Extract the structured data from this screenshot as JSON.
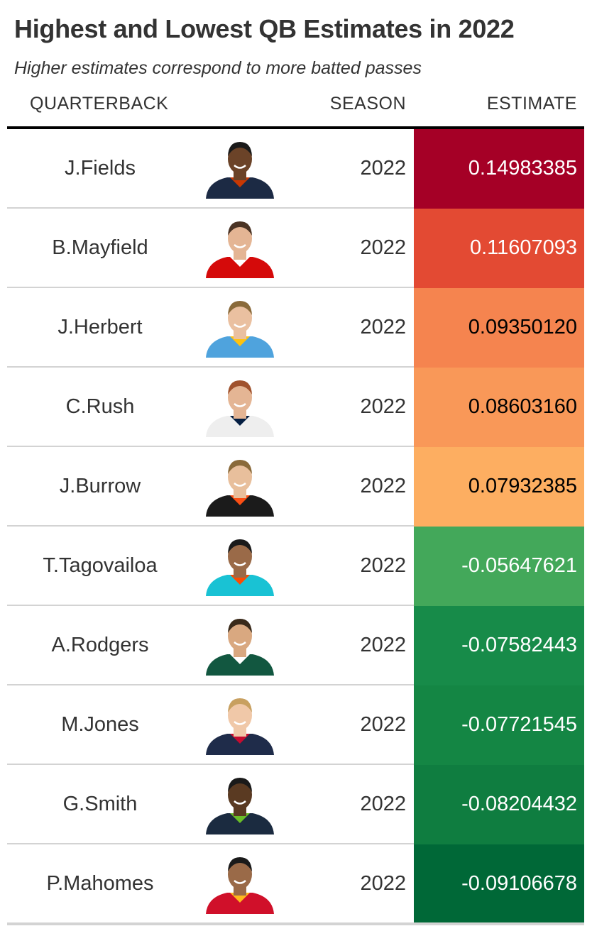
{
  "title": "Highest and Lowest QB Estimates in 2022",
  "subtitle": "Higher estimates correspond to more batted passes",
  "columns": {
    "quarterback": "QUARTERBACK",
    "season": "SEASON",
    "estimate": "ESTIMATE"
  },
  "chart_data": {
    "type": "table",
    "columns": [
      "QUARTERBACK",
      "SEASON",
      "ESTIMATE"
    ],
    "rows": [
      {
        "name": "J.Fields",
        "season": "2022",
        "estimate": "0.14983385",
        "bg": "#a50026",
        "fg": "#ffffff",
        "jersey": "#1c2a44",
        "skin": "#6b4328",
        "hair": "#1a1a1a",
        "accent": "#c83803"
      },
      {
        "name": "B.Mayfield",
        "season": "2022",
        "estimate": "0.11607093",
        "bg": "#e34a33",
        "fg": "#ffffff",
        "jersey": "#d50a0a",
        "skin": "#e4b594",
        "hair": "#4a3324",
        "accent": "#ffffff"
      },
      {
        "name": "J.Herbert",
        "season": "2022",
        "estimate": "0.09350120",
        "bg": "#f5844f",
        "fg": "#000000",
        "jersey": "#4fa3dd",
        "skin": "#eac0a0",
        "hair": "#8a6a3a",
        "accent": "#ffc20e"
      },
      {
        "name": "C.Rush",
        "season": "2022",
        "estimate": "0.08603160",
        "bg": "#f99858",
        "fg": "#000000",
        "jersey": "#eeeeee",
        "skin": "#e4b594",
        "hair": "#a0522d",
        "accent": "#041e42"
      },
      {
        "name": "J.Burrow",
        "season": "2022",
        "estimate": "0.07932385",
        "bg": "#fdae61",
        "fg": "#000000",
        "jersey": "#1b1b1b",
        "skin": "#e8bf9c",
        "hair": "#8a6a3a",
        "accent": "#fb4f14"
      },
      {
        "name": "T.Tagovailoa",
        "season": "2022",
        "estimate": "-0.05647621",
        "bg": "#43a85a",
        "fg": "#ffffff",
        "jersey": "#19c2d4",
        "skin": "#9a6a48",
        "hair": "#1a1a1a",
        "accent": "#fc4c02"
      },
      {
        "name": "A.Rodgers",
        "season": "2022",
        "estimate": "-0.07582443",
        "bg": "#178b49",
        "fg": "#ffffff",
        "jersey": "#125740",
        "skin": "#d9a880",
        "hair": "#3a2a1a",
        "accent": "#ffffff"
      },
      {
        "name": "M.Jones",
        "season": "2022",
        "estimate": "-0.07721545",
        "bg": "#148644",
        "fg": "#ffffff",
        "jersey": "#1f2c4a",
        "skin": "#f0c8a8",
        "hair": "#c8a060",
        "accent": "#c60c30"
      },
      {
        "name": "G.Smith",
        "season": "2022",
        "estimate": "-0.08204432",
        "bg": "#0f7d40",
        "fg": "#ffffff",
        "jersey": "#1b2b40",
        "skin": "#5a3a22",
        "hair": "#1a1a1a",
        "accent": "#69be28"
      },
      {
        "name": "P.Mahomes",
        "season": "2022",
        "estimate": "-0.09106678",
        "bg": "#006837",
        "fg": "#ffffff",
        "jersey": "#d0102a",
        "skin": "#9a6a48",
        "hair": "#1a1a1a",
        "accent": "#ffb81c"
      }
    ]
  }
}
